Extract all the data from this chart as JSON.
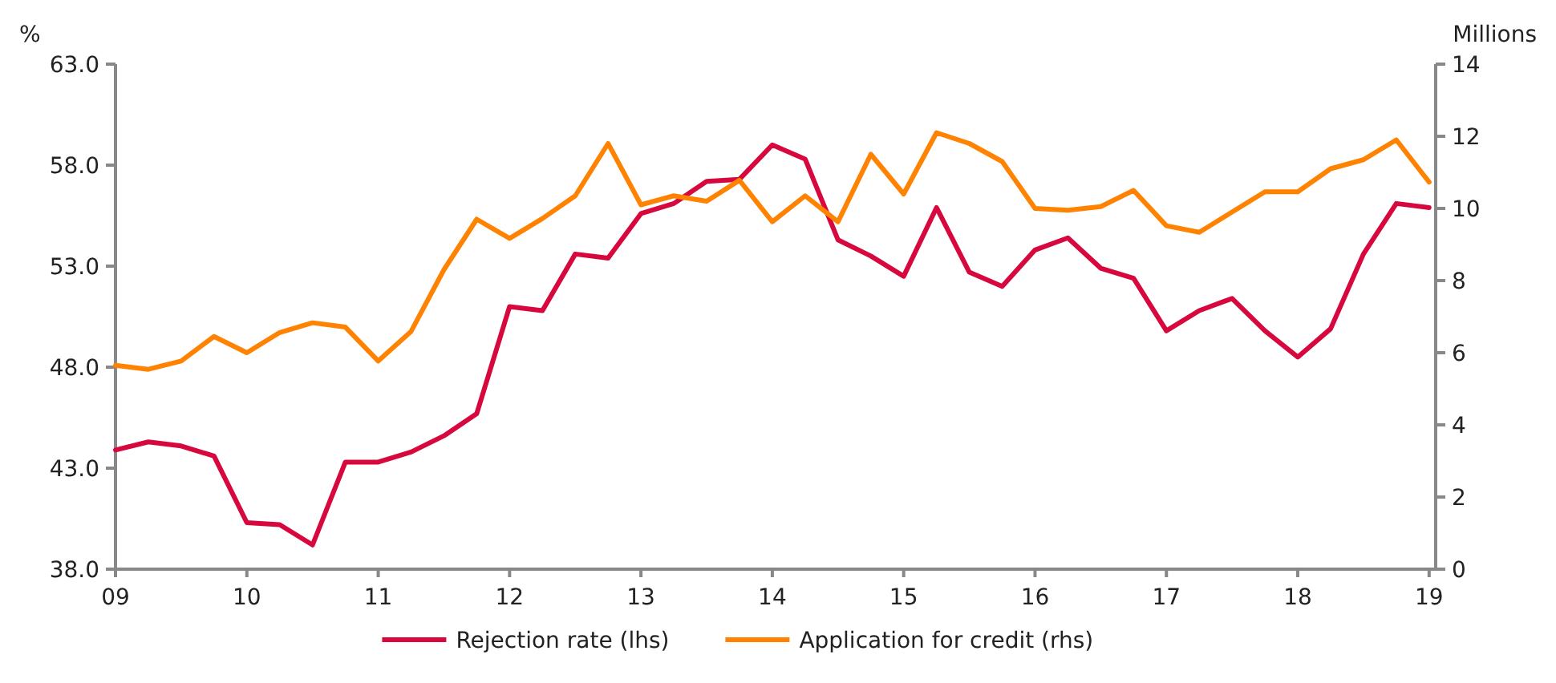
{
  "chart_data": {
    "type": "line",
    "ylabel": "%",
    "y2label": "Millions",
    "x": [
      2009,
      2009.25,
      2009.5,
      2009.75,
      2010,
      2010.25,
      2010.5,
      2010.75,
      2011,
      2011.25,
      2011.5,
      2011.75,
      2012,
      2012.25,
      2012.5,
      2012.75,
      2013,
      2013.25,
      2013.5,
      2013.75,
      2014,
      2014.25,
      2014.5,
      2014.75,
      2015,
      2015.25,
      2015.5,
      2015.75,
      2016,
      2016.25,
      2016.5,
      2016.75,
      2017,
      2017.25,
      2017.5,
      2017.75,
      2018,
      2018.25,
      2018.5,
      2018.75,
      2019
    ],
    "xlim": [
      2009,
      2019.05
    ],
    "xticks": [
      {
        "value": 2009,
        "label": "09"
      },
      {
        "value": 2010,
        "label": "10"
      },
      {
        "value": 2011,
        "label": "11"
      },
      {
        "value": 2012,
        "label": "12"
      },
      {
        "value": 2013,
        "label": "13"
      },
      {
        "value": 2014,
        "label": "14"
      },
      {
        "value": 2015,
        "label": "15"
      },
      {
        "value": 2016,
        "label": "16"
      },
      {
        "value": 2017,
        "label": "17"
      },
      {
        "value": 2018,
        "label": "18"
      },
      {
        "value": 2019,
        "label": "19"
      }
    ],
    "ylim": [
      38,
      63
    ],
    "yticks": [
      {
        "value": 38,
        "label": "38.0"
      },
      {
        "value": 43,
        "label": "43.0"
      },
      {
        "value": 48,
        "label": "48.0"
      },
      {
        "value": 53,
        "label": "53.0"
      },
      {
        "value": 58,
        "label": "58.0"
      },
      {
        "value": 63,
        "label": "63.0"
      }
    ],
    "y2lim": [
      0,
      14
    ],
    "y2ticks": [
      0,
      2,
      4,
      6,
      8,
      10,
      12,
      14
    ],
    "legend": "bottom",
    "grid": false,
    "marker": "none",
    "line_style": "solid",
    "series": [
      {
        "name": "Rejection rate (lhs)",
        "color": "#d7083d",
        "axis": "y",
        "values": [
          43.9,
          44.3,
          44.1,
          43.6,
          40.3,
          40.2,
          39.2,
          43.3,
          43.3,
          43.8,
          44.6,
          45.7,
          51.0,
          50.8,
          53.6,
          53.4,
          55.6,
          56.1,
          57.2,
          57.3,
          59.0,
          58.3,
          54.3,
          53.5,
          52.5,
          55.9,
          52.7,
          52.0,
          53.8,
          54.4,
          52.9,
          52.4,
          49.8,
          50.8,
          51.4,
          49.8,
          48.5,
          49.9,
          53.6,
          56.1,
          55.9
        ]
      },
      {
        "name": "Application for credit (rhs)",
        "color": "#ff8200",
        "axis": "y2",
        "values": [
          5.65,
          5.54,
          5.77,
          6.45,
          6.0,
          6.56,
          6.83,
          6.71,
          5.77,
          6.59,
          8.3,
          9.7,
          9.17,
          9.72,
          10.35,
          11.8,
          10.1,
          10.35,
          10.2,
          10.78,
          9.63,
          10.35,
          9.63,
          11.5,
          10.4,
          12.1,
          11.8,
          11.3,
          10.0,
          9.95,
          10.05,
          10.5,
          9.52,
          9.34,
          9.9,
          10.46,
          10.46,
          11.1,
          11.35,
          11.9,
          10.73
        ]
      }
    ]
  }
}
